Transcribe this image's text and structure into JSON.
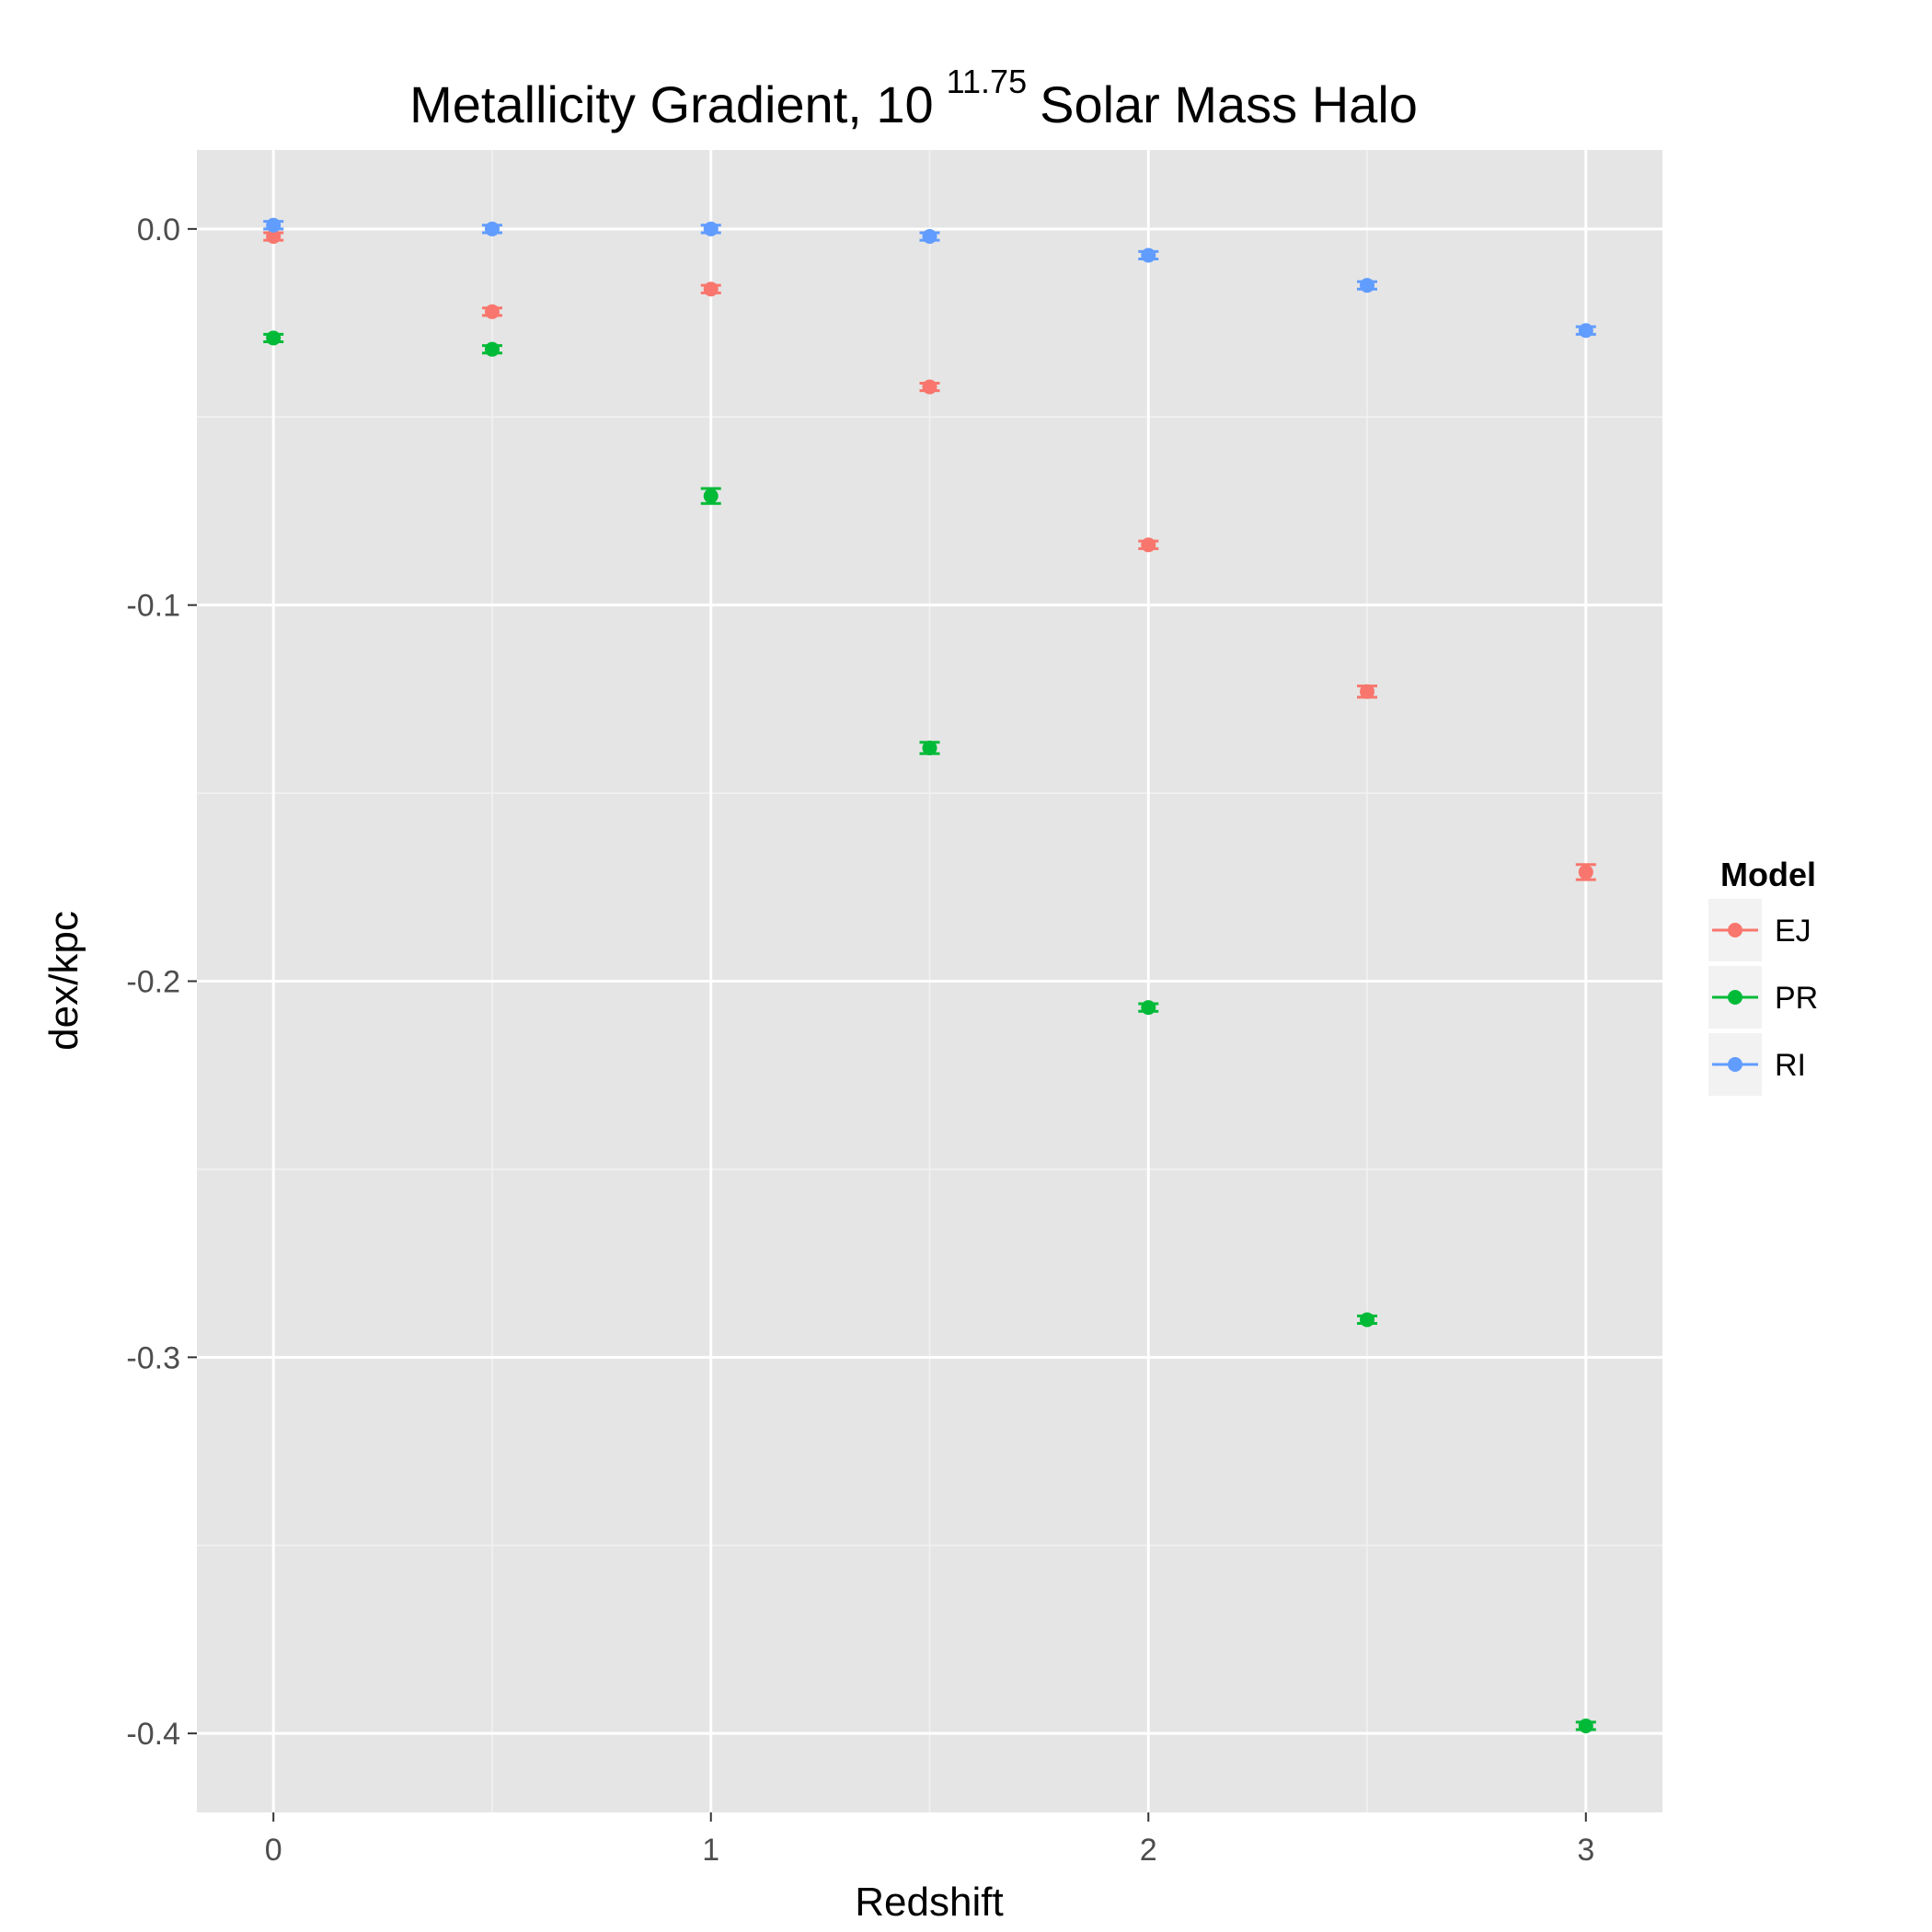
{
  "chart_data": {
    "type": "scatter",
    "title": {
      "prefix": "Metallicity Gradient, 10",
      "superscript": "11.75",
      "suffix": "Solar Mass Halo"
    },
    "xlabel": "Redshift",
    "ylabel": "dex/kpc",
    "xlim": [
      -0.175,
      3.175
    ],
    "ylim": [
      -0.421,
      0.021
    ],
    "x_ticks": [
      0,
      1,
      2,
      3
    ],
    "x_tick_labels": [
      "0",
      "1",
      "2",
      "3"
    ],
    "x_minor_ticks": [
      0.5,
      1.5,
      2.5
    ],
    "y_ticks": [
      0.0,
      -0.1,
      -0.2,
      -0.3,
      -0.4
    ],
    "y_tick_labels": [
      "0.0",
      "-0.1",
      "-0.2",
      "-0.3",
      "-0.4"
    ],
    "y_minor_ticks": [
      -0.05,
      -0.15,
      -0.25,
      -0.35
    ],
    "background": "#e5e5e5",
    "grid": true,
    "legend": {
      "title": "Model",
      "position": "right"
    },
    "series": [
      {
        "name": "EJ",
        "color": "#f8766d",
        "x": [
          0,
          0.5,
          1,
          1.5,
          2,
          2.5,
          3
        ],
        "y": [
          -0.002,
          -0.022,
          -0.016,
          -0.042,
          -0.084,
          -0.123,
          -0.171
        ],
        "error": [
          0.001,
          0.001,
          0.001,
          0.001,
          0.001,
          0.0015,
          0.002
        ]
      },
      {
        "name": "PR",
        "color": "#00ba38",
        "x": [
          0,
          0.5,
          1,
          1.5,
          2,
          2.5,
          3
        ],
        "y": [
          -0.029,
          -0.032,
          -0.071,
          -0.138,
          -0.207,
          -0.29,
          -0.398
        ],
        "error": [
          0.001,
          0.001,
          0.002,
          0.0015,
          0.001,
          0.001,
          0.001
        ]
      },
      {
        "name": "RI",
        "color": "#619cff",
        "x": [
          0,
          0.5,
          1,
          1.5,
          2,
          2.5,
          3
        ],
        "y": [
          0.001,
          0.0,
          0.0,
          -0.002,
          -0.007,
          -0.015,
          -0.027
        ],
        "error": [
          0.001,
          0.001,
          0.001,
          0.001,
          0.001,
          0.001,
          0.001
        ]
      }
    ]
  }
}
